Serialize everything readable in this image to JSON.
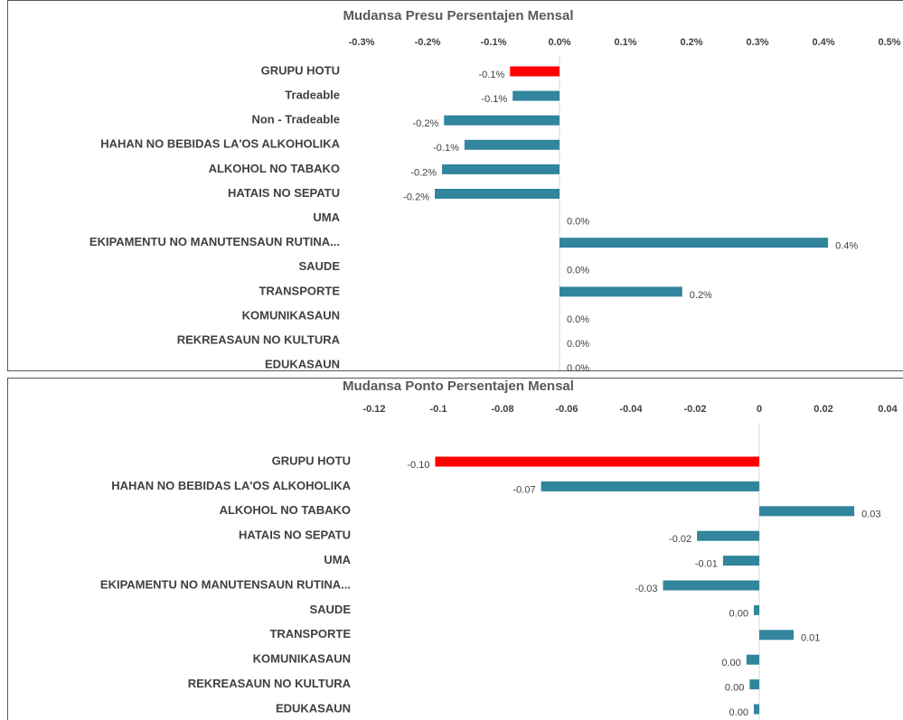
{
  "chart_data": [
    {
      "type": "bar",
      "orientation": "horizontal",
      "title": "Mudansa Presu Persentajen Mensal",
      "categories": [
        "GRUPU HOTU",
        "Tradeable",
        "Non - Tradeable",
        "HAHAN NO BEBIDAS LA'OS ALKOHOLIKA",
        "ALKOHOL NO TABAKO",
        "HATAIS NO SEPATU",
        "UMA",
        "EKIPAMENTU NO MANUTENSAUN RUTINA...",
        "SAUDE",
        "TRANSPORTE",
        "KOMUNIKASAUN",
        "REKREASAUN NO KULTURA",
        "EDUKASAUN"
      ],
      "values": [
        -0.075,
        -0.071,
        -0.175,
        -0.144,
        -0.178,
        -0.189,
        0,
        0.407,
        0,
        0.186,
        0,
        0,
        0
      ],
      "value_labels": [
        "-0.1%",
        "-0.1%",
        "-0.2%",
        "-0.1%",
        "-0.2%",
        "-0.2%",
        "0.0%",
        "0.4%",
        "0.0%",
        "0.2%",
        "0.0%",
        "0.0%",
        "0.0%"
      ],
      "colors": [
        "#ff0000",
        "#31859c",
        "#31859c",
        "#31859c",
        "#31859c",
        "#31859c",
        "#31859c",
        "#31859c",
        "#31859c",
        "#31859c",
        "#31859c",
        "#31859c",
        "#31859c"
      ],
      "xlim": [
        -0.3,
        0.5
      ],
      "xticks": [
        {
          "value": -0.3,
          "label": "-0.3%"
        },
        {
          "value": -0.2,
          "label": "-0.2%"
        },
        {
          "value": -0.1,
          "label": "-0.1%"
        },
        {
          "value": 0,
          "label": "0.0%"
        },
        {
          "value": 0.1,
          "label": "0.1%"
        },
        {
          "value": 0.2,
          "label": "0.2%"
        },
        {
          "value": 0.3,
          "label": "0.3%"
        },
        {
          "value": 0.4,
          "label": "0.4%"
        },
        {
          "value": 0.5,
          "label": "0.5%"
        }
      ],
      "grid": false
    },
    {
      "type": "bar",
      "orientation": "horizontal",
      "title": "Mudansa Ponto Persentajen Mensal",
      "categories": [
        "GRUPU HOTU",
        "HAHAN NO BEBIDAS LA'OS ALKOHOLIKA",
        "ALKOHOL NO TABAKO",
        "HATAIS NO SEPATU",
        "UMA",
        "EKIPAMENTU NO MANUTENSAUN RUTINA...",
        "SAUDE",
        "TRANSPORTE",
        "KOMUNIKASAUN",
        "REKREASAUN NO KULTURA",
        "EDUKASAUN"
      ],
      "values": [
        -0.101,
        -0.068,
        0.0296,
        -0.0194,
        -0.0113,
        -0.03,
        -0.0017,
        0.0107,
        -0.004,
        -0.003,
        -0.0017
      ],
      "value_labels": [
        "-0.10",
        "-0.07",
        "0.03",
        "-0.02",
        "-0.01",
        "-0.03",
        "0.00",
        "0.01",
        "0.00",
        "0.00",
        "0.00"
      ],
      "colors": [
        "#ff0000",
        "#31859c",
        "#31859c",
        "#31859c",
        "#31859c",
        "#31859c",
        "#31859c",
        "#31859c",
        "#31859c",
        "#31859c",
        "#31859c"
      ],
      "xlim": [
        -0.12,
        0.04
      ],
      "xticks": [
        -0.12,
        -0.1,
        -0.08,
        -0.06,
        -0.04,
        -0.02,
        0,
        0.02,
        0.04
      ],
      "grid": false
    }
  ]
}
